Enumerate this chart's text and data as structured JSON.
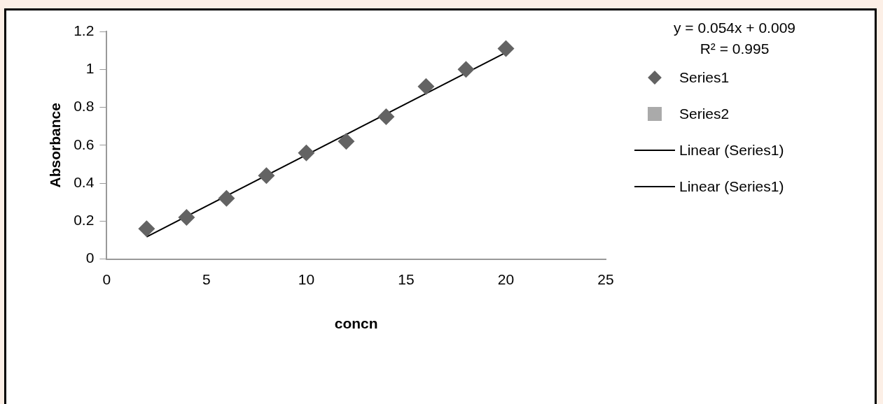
{
  "chart_data": {
    "type": "scatter",
    "xlabel": "concn",
    "ylabel": "Absorbance",
    "annotations": [
      "y = 0.054x + 0.009",
      "R² = 0.995"
    ],
    "xlim": [
      0,
      25
    ],
    "xticks": [
      0,
      5,
      10,
      15,
      20,
      25
    ],
    "ylim": [
      0,
      1.2
    ],
    "yticks": [
      0,
      0.2,
      0.4,
      0.6,
      0.8,
      1,
      1.2
    ],
    "grid": false,
    "legend": "right",
    "series": [
      {
        "name": "Series1",
        "type": "scatter",
        "marker": "diamond",
        "color": "#636363",
        "x": [
          2,
          4,
          6,
          8,
          10,
          12,
          14,
          16,
          18,
          20
        ],
        "values": [
          0.16,
          0.22,
          0.32,
          0.44,
          0.56,
          0.62,
          0.75,
          0.91,
          1.0,
          1.11
        ]
      },
      {
        "name": "Series2",
        "type": "scatter",
        "marker": "square",
        "color": "#aaaaaa"
      },
      {
        "name": "Linear (Series1)",
        "type": "line",
        "marker": "none",
        "line_style": "solid",
        "color": "#000000",
        "x": [
          2,
          20
        ],
        "values": [
          0.117,
          1.089
        ]
      },
      {
        "name": "Linear (Series1)",
        "type": "line",
        "marker": "none",
        "line_style": "solid",
        "color": "#000000"
      }
    ]
  }
}
